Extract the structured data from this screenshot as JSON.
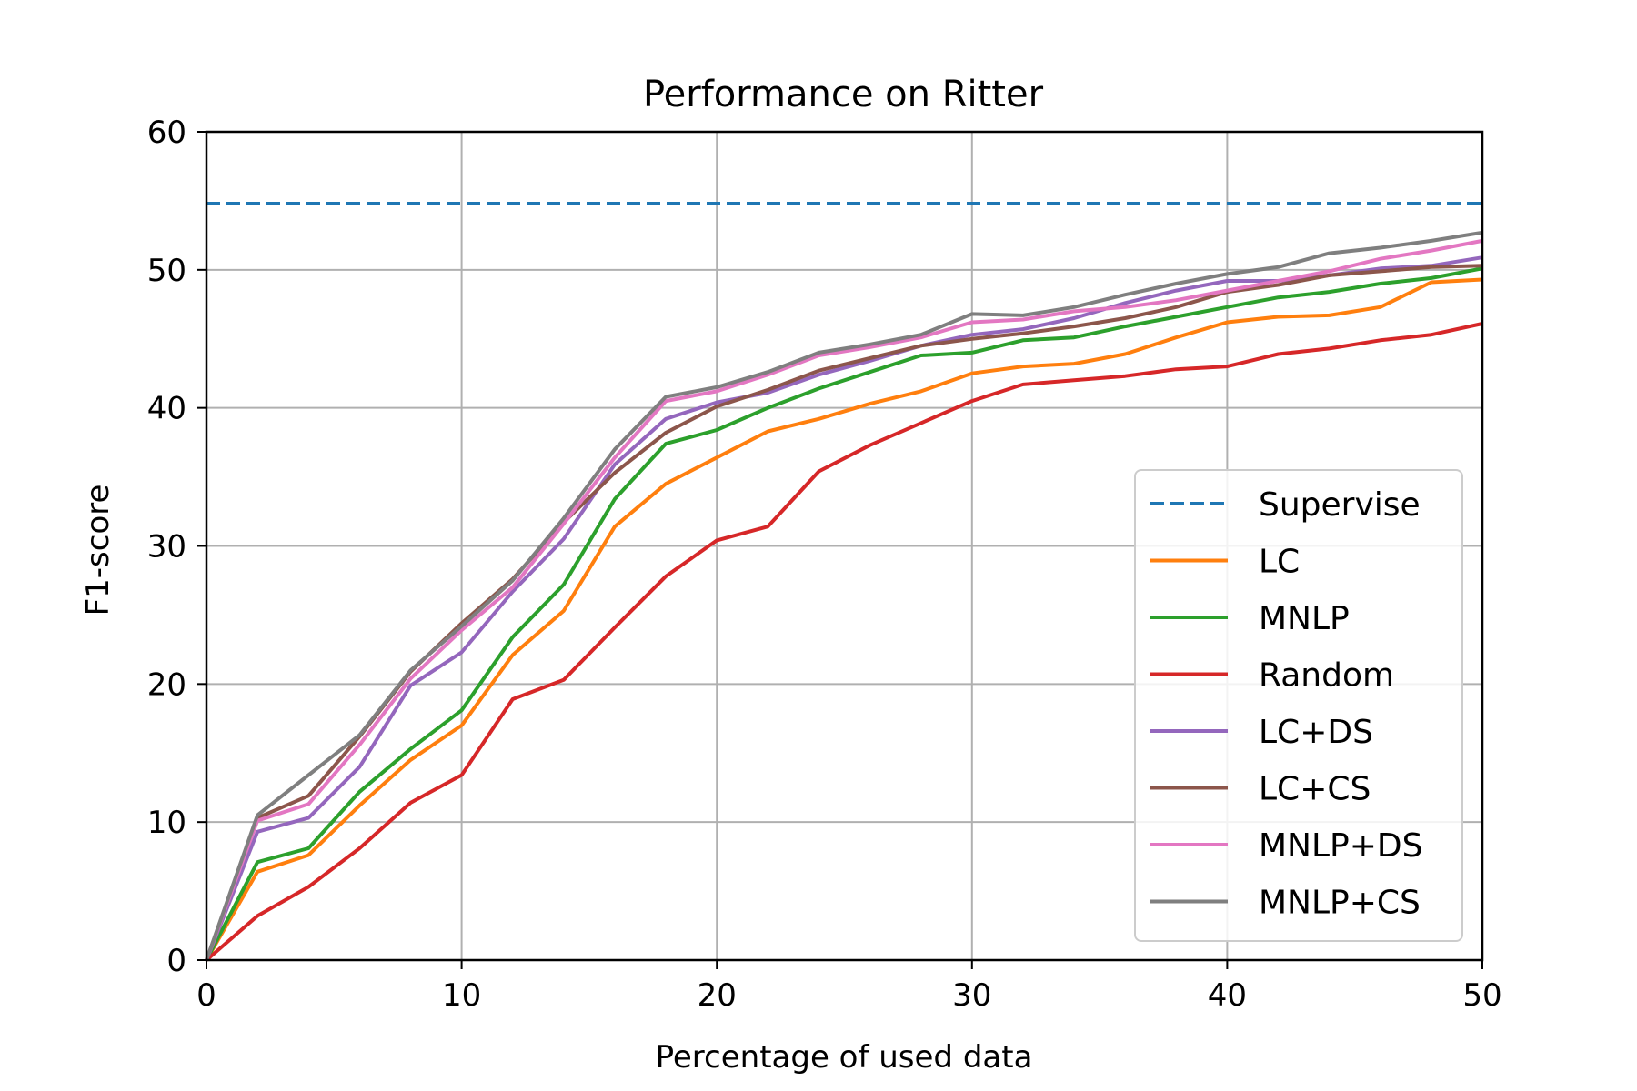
{
  "chart_data": {
    "type": "line",
    "title": "Performance on Ritter",
    "xlabel": "Percentage of used data",
    "ylabel": "F1-score",
    "xlim": [
      0,
      50
    ],
    "ylim": [
      0,
      60
    ],
    "xticks": [
      0,
      10,
      20,
      30,
      40,
      50
    ],
    "yticks": [
      0,
      10,
      20,
      30,
      40,
      50,
      60
    ],
    "grid": true,
    "legend_position": "lower-right",
    "x": [
      0,
      2,
      4,
      6,
      8,
      10,
      12,
      14,
      16,
      18,
      20,
      22,
      24,
      26,
      28,
      30,
      32,
      34,
      36,
      38,
      40,
      42,
      44,
      46,
      48,
      50
    ],
    "reference_lines": [
      {
        "name": "Supervise",
        "y": 54.8,
        "color": "#1f77b4",
        "style": "dashed"
      }
    ],
    "series": [
      {
        "name": "LC",
        "color": "#ff7f0e",
        "values": [
          0,
          6.4,
          7.6,
          11.2,
          14.5,
          17.0,
          22.1,
          25.3,
          31.4,
          34.5,
          36.4,
          38.3,
          39.2,
          40.3,
          41.2,
          42.5,
          43.0,
          43.2,
          43.9,
          45.1,
          46.2,
          46.6,
          46.7,
          47.3,
          49.1,
          49.3
        ]
      },
      {
        "name": "MNLP",
        "color": "#2ca02c",
        "values": [
          0,
          7.1,
          8.1,
          12.2,
          15.3,
          18.1,
          23.4,
          27.2,
          33.4,
          37.4,
          38.4,
          40.0,
          41.4,
          42.6,
          43.8,
          44.0,
          44.9,
          45.1,
          45.9,
          46.6,
          47.3,
          48.0,
          48.4,
          49.0,
          49.4,
          50.1
        ]
      },
      {
        "name": "Random",
        "color": "#d62728",
        "values": [
          0,
          3.2,
          5.3,
          8.1,
          11.4,
          13.4,
          18.9,
          20.3,
          24.1,
          27.8,
          30.4,
          31.4,
          35.4,
          37.3,
          38.9,
          40.5,
          41.7,
          42.0,
          42.3,
          42.8,
          43.0,
          43.9,
          44.3,
          44.9,
          45.3,
          46.1
        ]
      },
      {
        "name": "LC+DS",
        "color": "#9467bd",
        "values": [
          0,
          9.3,
          10.3,
          14.0,
          19.9,
          22.3,
          26.7,
          30.5,
          35.9,
          39.2,
          40.4,
          41.1,
          42.4,
          43.4,
          44.5,
          45.3,
          45.7,
          46.5,
          47.6,
          48.5,
          49.2,
          49.2,
          49.6,
          50.1,
          50.3,
          50.9
        ]
      },
      {
        "name": "LC+CS",
        "color": "#8c564b",
        "values": [
          0,
          10.3,
          11.9,
          16.2,
          20.9,
          24.4,
          27.6,
          31.7,
          35.3,
          38.2,
          40.1,
          41.3,
          42.7,
          43.6,
          44.5,
          45.0,
          45.4,
          45.9,
          46.5,
          47.3,
          48.4,
          48.9,
          49.6,
          49.9,
          50.2,
          50.3
        ]
      },
      {
        "name": "MNLP+DS",
        "color": "#e377c2",
        "values": [
          0,
          10.1,
          11.3,
          15.6,
          20.4,
          23.9,
          27.0,
          31.6,
          36.4,
          40.5,
          41.2,
          42.4,
          43.8,
          44.4,
          45.1,
          46.2,
          46.4,
          47.0,
          47.3,
          47.8,
          48.5,
          49.2,
          49.9,
          50.8,
          51.4,
          52.1
        ]
      },
      {
        "name": "MNLP+CS",
        "color": "#7f7f7f",
        "values": [
          0,
          10.5,
          13.4,
          16.3,
          21.0,
          24.2,
          27.5,
          32.0,
          37.0,
          40.8,
          41.5,
          42.6,
          44.0,
          44.6,
          45.3,
          46.8,
          46.7,
          47.3,
          48.2,
          49.0,
          49.7,
          50.2,
          51.2,
          51.6,
          52.1,
          52.7
        ]
      }
    ]
  }
}
